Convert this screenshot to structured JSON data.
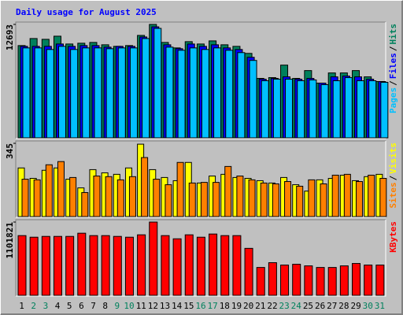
{
  "chart_data": [
    {
      "type": "bar",
      "title": "Daily usage for August 2025",
      "separator": "/",
      "ylim": [
        0,
        12693
      ],
      "yticks": [
        12693
      ],
      "series": [
        {
          "name": "Hits",
          "color": "#00805c",
          "values": [
            10325,
            11113,
            11025,
            11375,
            10500,
            10588,
            10675,
            10413,
            10238,
            10325,
            11463,
            12693,
            10675,
            10063,
            10763,
            10500,
            10850,
            10413,
            10238,
            9450,
            6650,
            6738,
            8138,
            6650,
            7525,
            6125,
            7263,
            7263,
            7525,
            6825,
            6300
          ]
        },
        {
          "name": "Files",
          "color": "#0000ff",
          "values": [
            10238,
            10238,
            10238,
            10500,
            10238,
            10325,
            10325,
            10150,
            10238,
            10238,
            11288,
            12425,
            10413,
            9975,
            10500,
            10238,
            10413,
            10063,
            9888,
            9013,
            6563,
            6650,
            6825,
            6563,
            6650,
            6125,
            6825,
            6913,
            6825,
            6563,
            6300
          ]
        },
        {
          "name": "Pages",
          "color": "#00c0ff",
          "values": [
            10063,
            10063,
            9888,
            10238,
            9888,
            10063,
            10063,
            9975,
            10063,
            10063,
            11113,
            12250,
            10150,
            9800,
            10063,
            9888,
            10063,
            9800,
            9538,
            8663,
            6388,
            6563,
            6563,
            6388,
            6475,
            5950,
            6388,
            6738,
            6388,
            6388,
            6213
          ]
        }
      ]
    },
    {
      "type": "bar",
      "separator": "/",
      "ylim": [
        0,
        345
      ],
      "yticks": [
        345
      ],
      "series": [
        {
          "name": "Visits",
          "color": "#ffff00",
          "values": [
            229,
            180,
            218,
            229,
            176,
            135,
            221,
            206,
            199,
            229,
            341,
            221,
            184,
            169,
            255,
            158,
            191,
            199,
            184,
            180,
            169,
            158,
            184,
            150,
            120,
            173,
            180,
            195,
            169,
            188,
            199
          ]
        },
        {
          "name": "Sites",
          "color": "#ff8000",
          "values": [
            176,
            173,
            244,
            259,
            184,
            113,
            191,
            188,
            173,
            188,
            278,
            176,
            150,
            255,
            158,
            161,
            161,
            236,
            191,
            173,
            158,
            154,
            165,
            143,
            173,
            154,
            195,
            199,
            165,
            195,
            180
          ]
        }
      ]
    },
    {
      "type": "bar",
      "ylim": [
        0,
        1101821
      ],
      "yticks": [
        1101821
      ],
      "categories": [
        "1",
        "2",
        "3",
        "4",
        "5",
        "6",
        "7",
        "8",
        "9",
        "10",
        "11",
        "12",
        "13",
        "14",
        "15",
        "16",
        "17",
        "18",
        "19",
        "20",
        "21",
        "22",
        "23",
        "24",
        "25",
        "26",
        "27",
        "28",
        "29",
        "30",
        "31"
      ],
      "category_colors": [
        "#000000",
        "#00805c",
        "#00805c",
        "#000000",
        "#000000",
        "#000000",
        "#000000",
        "#000000",
        "#00805c",
        "#00805c",
        "#000000",
        "#000000",
        "#000000",
        "#000000",
        "#000000",
        "#00805c",
        "#00805c",
        "#000000",
        "#000000",
        "#000000",
        "#000000",
        "#000000",
        "#00805c",
        "#00805c",
        "#000000",
        "#000000",
        "#000000",
        "#000000",
        "#000000",
        "#00805c",
        "#00805c"
      ],
      "series": [
        {
          "name": "KBytes",
          "color": "#ff0000",
          "values": [
            898200,
            874250,
            886200,
            886200,
            886200,
            934130,
            898200,
            898200,
            886200,
            874250,
            910180,
            1101821,
            898200,
            850300,
            910180,
            874250,
            922150,
            898200,
            898200,
            706600,
            419150,
            491000,
            455100,
            467060,
            443100,
            419150,
            419150,
            443100,
            479040,
            455100,
            455100
          ]
        }
      ]
    }
  ]
}
